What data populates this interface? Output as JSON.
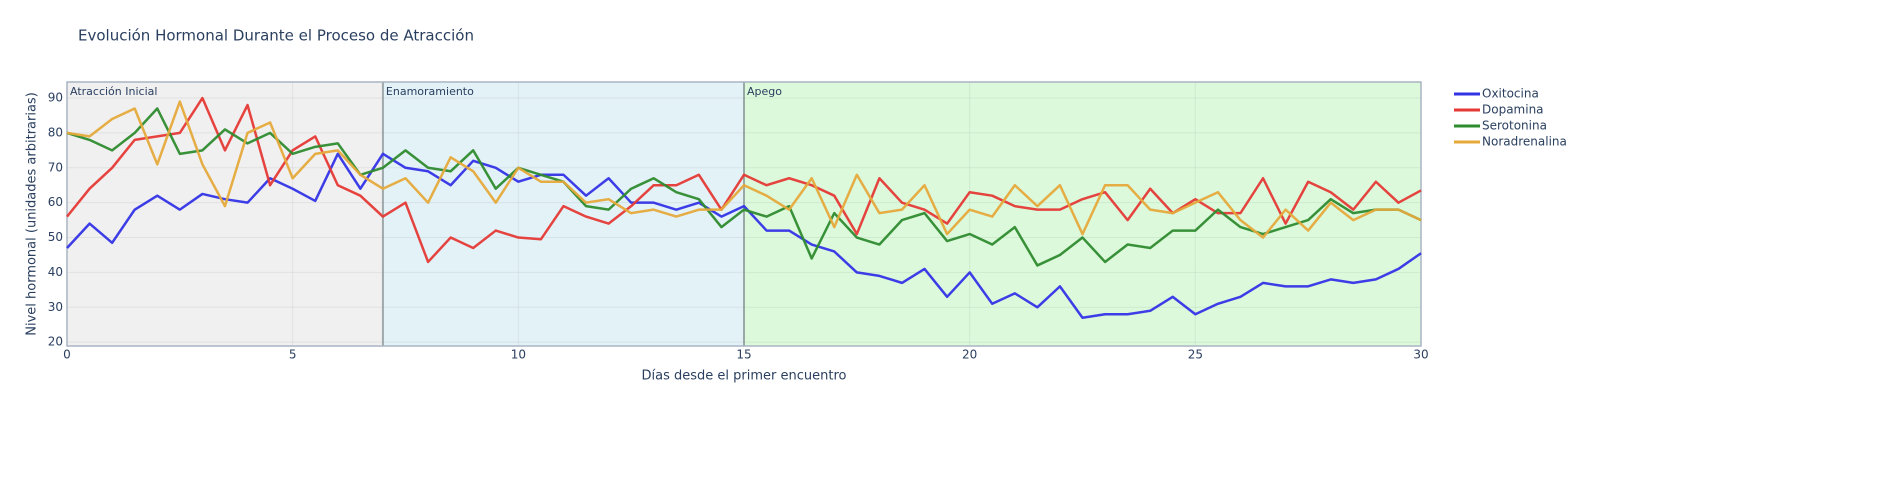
{
  "chart_data": {
    "type": "line",
    "title": "Evolución Hormonal Durante el Proceso de Atracción",
    "x_label": "Días desde el primer encuentro",
    "y_label": "Nivel hormonal (unidades arbitrarias)",
    "xlim": [
      0,
      30
    ],
    "ylim": [
      18.9,
      94.6
    ],
    "xticks": [
      0,
      5,
      10,
      15,
      20,
      25,
      30
    ],
    "yticks": [
      20,
      30,
      40,
      50,
      60,
      70,
      80,
      90
    ],
    "grid": true,
    "legend": "right",
    "regions": [
      {
        "label": "Atracción Inicial",
        "start": 0,
        "end": 7,
        "color": "#f0f0f0"
      },
      {
        "label": "Enamoramiento",
        "start": 7,
        "end": 15,
        "color": "#e3f2f7"
      },
      {
        "label": "Apego",
        "start": 15,
        "end": 30,
        "color": "#dcf9dc"
      }
    ],
    "x": [
      0,
      0.5,
      1,
      1.5,
      2,
      2.5,
      3,
      3.5,
      4,
      4.5,
      5,
      5.5,
      6,
      6.5,
      7,
      7.5,
      8,
      8.5,
      9,
      9.5,
      10,
      10.5,
      11,
      11.5,
      12,
      12.5,
      13,
      13.5,
      14,
      14.5,
      15,
      15.5,
      16,
      16.5,
      17,
      17.5,
      18,
      18.5,
      19,
      19.5,
      20,
      20.5,
      21,
      21.5,
      22,
      22.5,
      23,
      23.5,
      24,
      24.5,
      25,
      25.5,
      26,
      26.5,
      27,
      27.5,
      28,
      28.5,
      29,
      29.5,
      30
    ],
    "series": [
      {
        "name": "Oxitocina",
        "color": "#3333e6",
        "values": [
          47,
          54,
          48.5,
          58,
          62,
          58,
          62.5,
          61,
          60,
          67,
          64,
          60.5,
          74,
          64,
          74,
          70,
          69,
          65,
          72,
          70,
          66,
          68,
          68,
          62,
          67,
          60,
          60,
          58,
          60,
          56,
          59,
          52,
          52,
          48,
          46,
          40,
          39,
          37,
          41,
          33,
          40,
          31,
          34,
          30,
          36,
          27,
          28,
          28,
          29,
          33,
          28,
          31,
          33,
          37,
          36,
          36,
          38,
          37,
          38,
          41,
          45.5
        ]
      },
      {
        "name": "Dopamina",
        "color": "#e53935",
        "values": [
          56,
          64,
          70,
          78,
          79,
          80,
          90,
          75,
          88,
          65,
          75,
          79,
          65,
          62,
          56,
          60,
          43,
          50,
          47,
          52,
          50,
          49.5,
          59,
          56,
          54,
          59,
          65,
          65,
          68,
          58,
          68,
          65,
          67,
          65,
          62,
          51,
          67,
          60,
          58,
          54,
          63,
          62,
          59,
          58,
          58,
          61,
          63,
          55,
          64,
          57,
          61,
          57,
          57,
          67,
          54,
          66,
          63,
          58,
          66,
          60,
          63.5
        ]
      },
      {
        "name": "Serotonina",
        "color": "#2e8b2e",
        "values": [
          80,
          78,
          75,
          80,
          87,
          74,
          75,
          81,
          77,
          80,
          74,
          76,
          77,
          68,
          70,
          75,
          70,
          69,
          75,
          64,
          70,
          68,
          66,
          59,
          58,
          64,
          67,
          63,
          61,
          53,
          58,
          56,
          59,
          44,
          57,
          50,
          48,
          55,
          57,
          49,
          51,
          48,
          53,
          42,
          45,
          50,
          43,
          48,
          47,
          52,
          52,
          58,
          53,
          51,
          53,
          55,
          61,
          57,
          58,
          58,
          55
        ]
      },
      {
        "name": "Noradrenalina",
        "color": "#e5a93a",
        "values": [
          80,
          79,
          84,
          87,
          71,
          89,
          71,
          59,
          80,
          83,
          67,
          74,
          75,
          68,
          64,
          67,
          60,
          73,
          69,
          60,
          70,
          66,
          66,
          60,
          61,
          57,
          58,
          56,
          58,
          58,
          65,
          62,
          58,
          67,
          53,
          68,
          57,
          58,
          65,
          51,
          58,
          56,
          65,
          59,
          65,
          51,
          65,
          65,
          58,
          57,
          60,
          63,
          55,
          50,
          58,
          52,
          60,
          55,
          58,
          58,
          55
        ]
      }
    ]
  }
}
